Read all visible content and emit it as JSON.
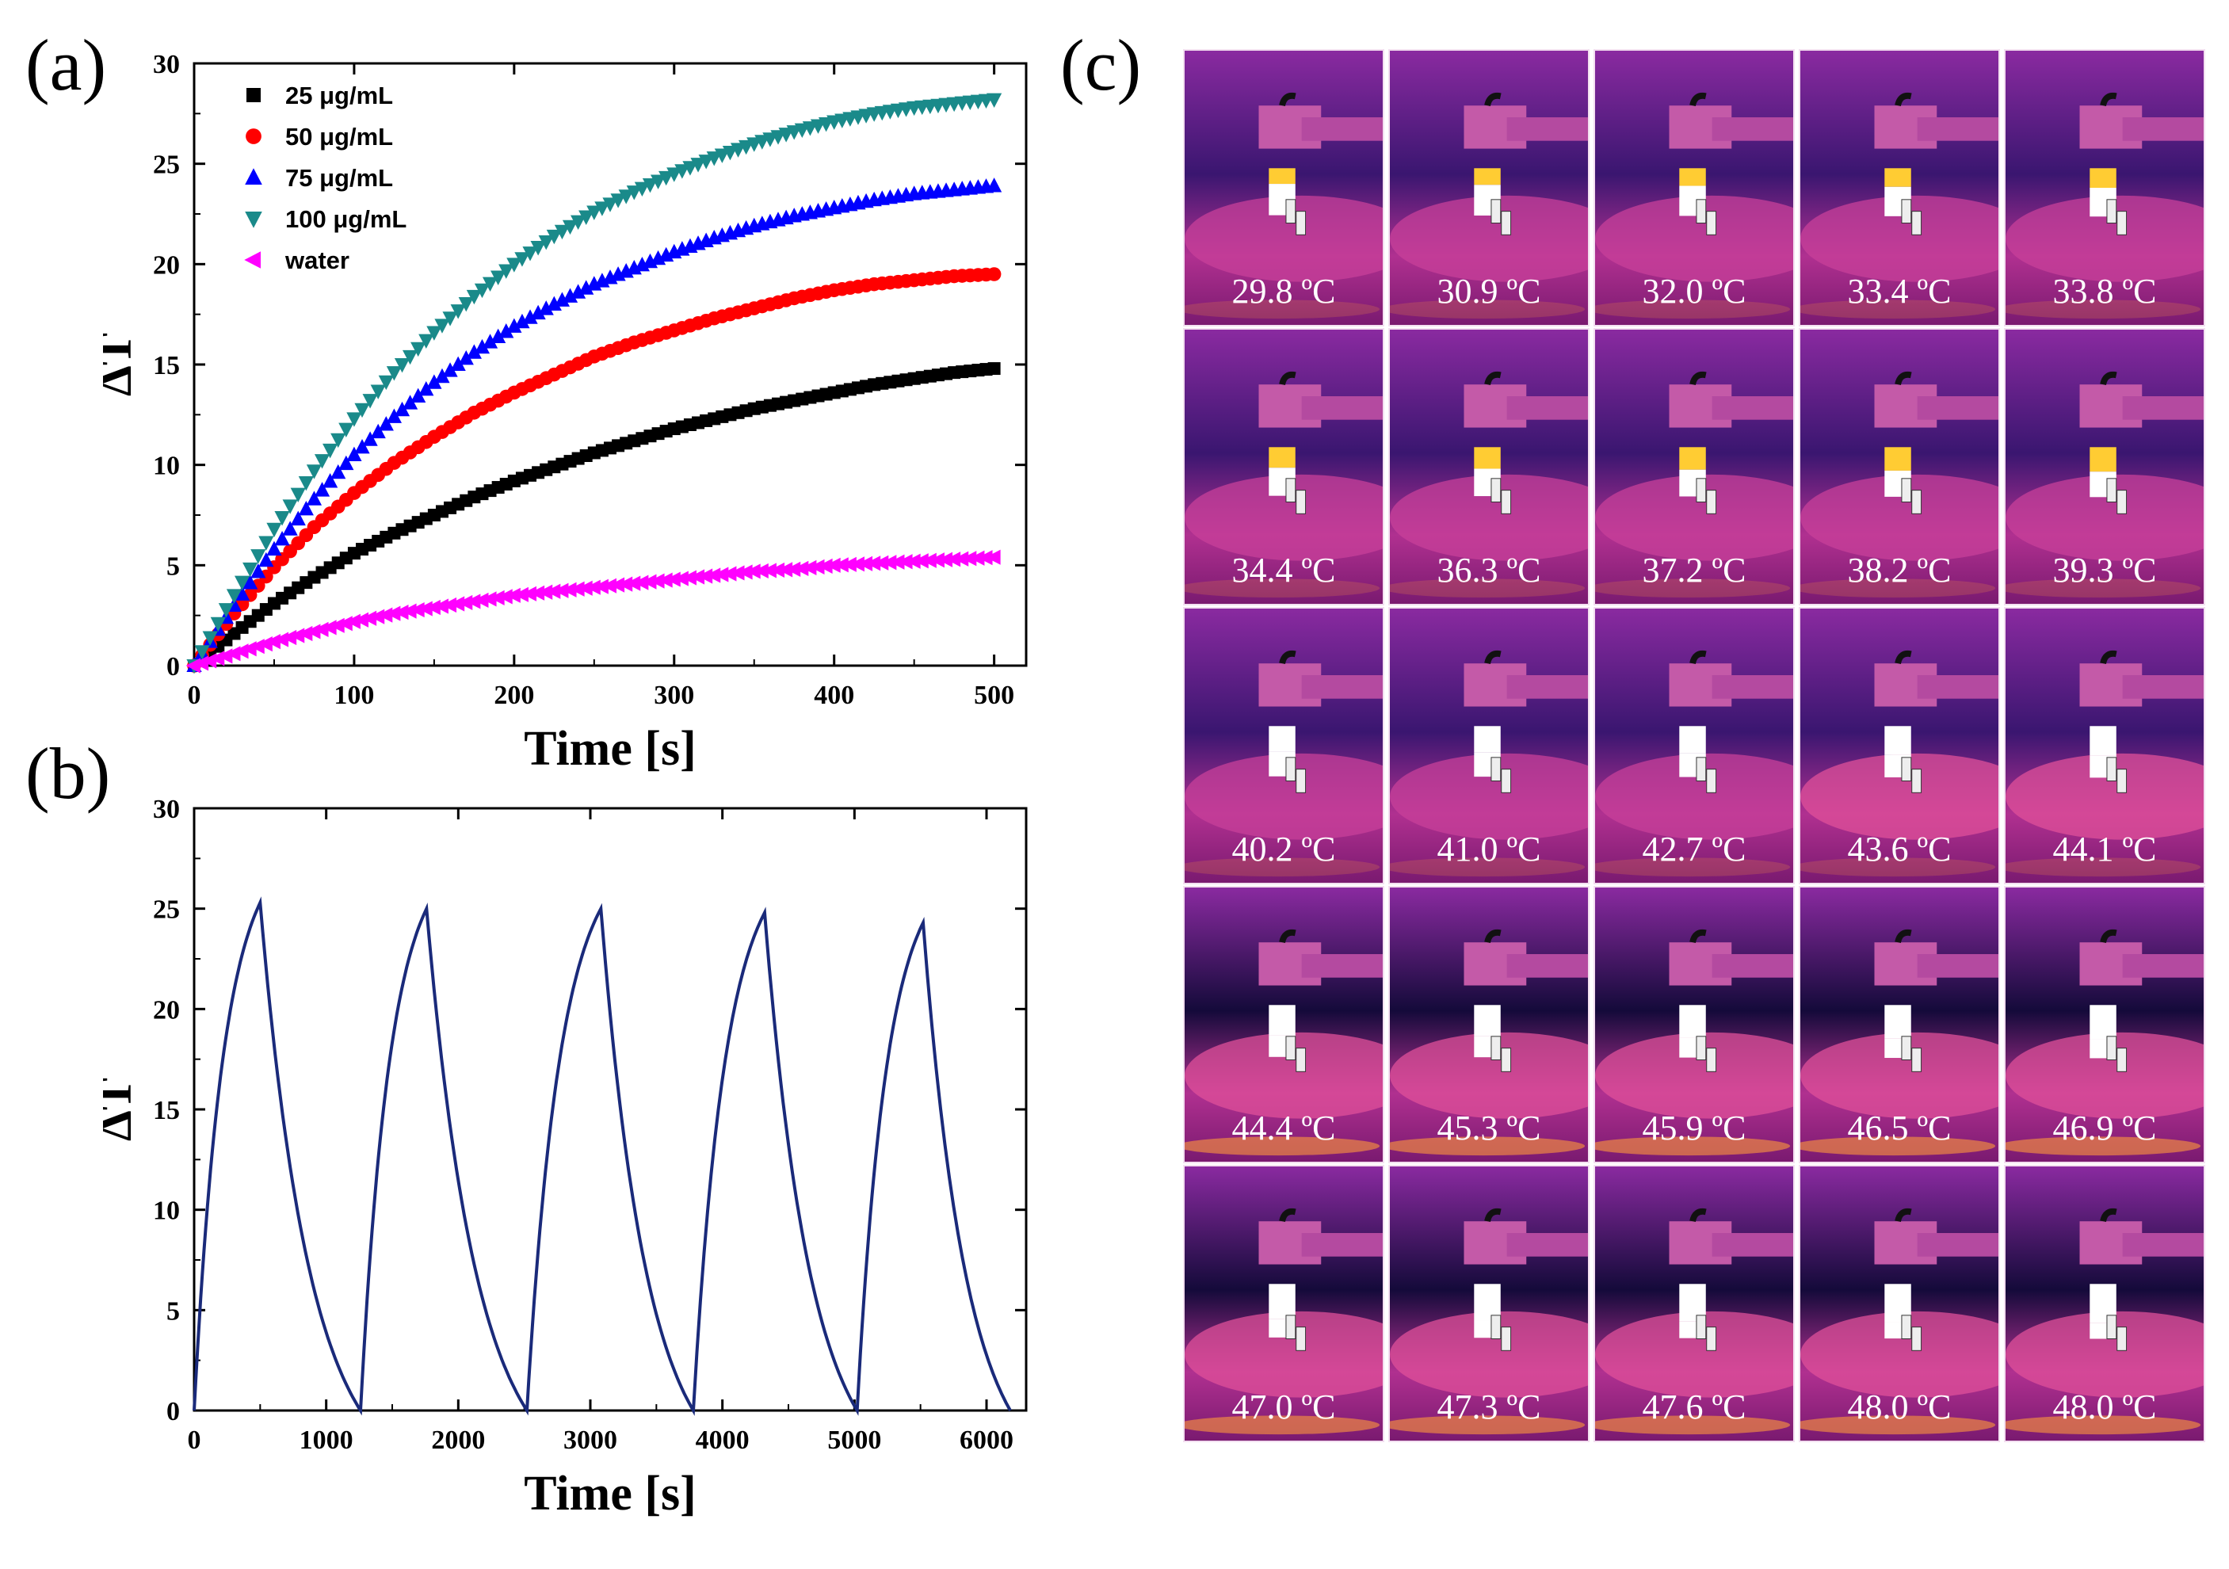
{
  "panel_labels": {
    "a": "(a)",
    "b": "(b)",
    "c": "(c)"
  },
  "chart_data": [
    {
      "id": "a",
      "type": "scatter",
      "xlabel": "Time [s]",
      "ylabel": "ΔT",
      "xlim": [
        0,
        520
      ],
      "ylim": [
        0,
        30
      ],
      "xticks": [
        0,
        100,
        200,
        300,
        400,
        500
      ],
      "yticks": [
        0,
        5,
        10,
        15,
        20,
        25,
        30
      ],
      "legend_position": "top-left",
      "series": [
        {
          "name": "25 μg/mL",
          "marker": "square",
          "color": "#000000",
          "x": [
            0,
            25,
            50,
            75,
            100,
            125,
            150,
            175,
            200,
            225,
            250,
            275,
            300,
            325,
            350,
            375,
            400,
            425,
            450,
            475,
            500
          ],
          "y": [
            0,
            1.6,
            3.1,
            4.4,
            5.6,
            6.6,
            7.5,
            8.4,
            9.2,
            9.9,
            10.6,
            11.2,
            11.8,
            12.3,
            12.8,
            13.2,
            13.6,
            14.0,
            14.3,
            14.6,
            14.8
          ]
        },
        {
          "name": "50 μg/mL",
          "marker": "circle",
          "color": "#ff0000",
          "x": [
            0,
            25,
            50,
            75,
            100,
            125,
            150,
            175,
            200,
            225,
            250,
            275,
            300,
            325,
            350,
            375,
            400,
            425,
            450,
            475,
            500
          ],
          "y": [
            0,
            2.6,
            4.9,
            6.9,
            8.6,
            10.1,
            11.4,
            12.6,
            13.6,
            14.5,
            15.4,
            16.1,
            16.7,
            17.3,
            17.8,
            18.3,
            18.7,
            19.0,
            19.2,
            19.4,
            19.5
          ]
        },
        {
          "name": "75 μg/mL",
          "marker": "triangle-up",
          "color": "#0000ff",
          "x": [
            0,
            25,
            50,
            75,
            100,
            125,
            150,
            175,
            200,
            225,
            250,
            275,
            300,
            325,
            350,
            375,
            400,
            425,
            450,
            475,
            500
          ],
          "y": [
            0,
            3.0,
            5.8,
            8.3,
            10.5,
            12.4,
            14.1,
            15.6,
            16.9,
            18.0,
            19.0,
            19.8,
            20.6,
            21.3,
            21.9,
            22.4,
            22.8,
            23.2,
            23.5,
            23.7,
            23.9
          ]
        },
        {
          "name": "100 μg/mL",
          "marker": "triangle-down",
          "color": "#1a8a8a",
          "x": [
            0,
            25,
            50,
            75,
            100,
            125,
            150,
            175,
            200,
            225,
            250,
            275,
            300,
            325,
            350,
            375,
            400,
            425,
            450,
            475,
            500
          ],
          "y": [
            0,
            3.5,
            6.8,
            9.7,
            12.3,
            14.6,
            16.6,
            18.4,
            20.0,
            21.4,
            22.6,
            23.6,
            24.5,
            25.3,
            26.0,
            26.6,
            27.1,
            27.5,
            27.8,
            28.0,
            28.2
          ]
        },
        {
          "name": "water",
          "marker": "triangle-left",
          "color": "#ff00ff",
          "x": [
            0,
            25,
            50,
            75,
            100,
            125,
            150,
            175,
            200,
            225,
            250,
            275,
            300,
            325,
            350,
            375,
            400,
            425,
            450,
            475,
            500
          ],
          "y": [
            0,
            0.6,
            1.2,
            1.7,
            2.2,
            2.6,
            2.9,
            3.2,
            3.5,
            3.7,
            3.9,
            4.1,
            4.3,
            4.5,
            4.7,
            4.8,
            5.0,
            5.1,
            5.2,
            5.3,
            5.4
          ]
        }
      ]
    },
    {
      "id": "b",
      "type": "line",
      "xlabel": "Time [s]",
      "ylabel": "ΔT",
      "xlim": [
        0,
        6300
      ],
      "ylim": [
        0,
        30
      ],
      "xticks": [
        0,
        1000,
        2000,
        3000,
        4000,
        5000,
        6000
      ],
      "yticks": [
        0,
        5,
        10,
        15,
        20,
        25,
        30
      ],
      "color": "#1a2a7a",
      "cycles": [
        {
          "start": 0,
          "peak_time": 500,
          "peak": 25.3,
          "end": 1260
        },
        {
          "start": 1260,
          "peak_time": 1760,
          "peak": 25.0,
          "end": 2520
        },
        {
          "start": 2520,
          "peak_time": 3080,
          "peak": 25.0,
          "end": 3780
        },
        {
          "start": 3780,
          "peak_time": 4320,
          "peak": 24.8,
          "end": 5020
        },
        {
          "start": 5020,
          "peak_time": 5520,
          "peak": 24.3,
          "end": 6180
        }
      ]
    }
  ],
  "thermal_images": {
    "temperatures": [
      "29.8 ºC",
      "30.9 ºC",
      "32.0 ºC",
      "33.4 ºC",
      "33.8 ºC",
      "34.4 ºC",
      "36.3 ºC",
      "37.2 ºC",
      "38.2 ºC",
      "39.3 ºC",
      "40.2 ºC",
      "41.0 ºC",
      "42.7 ºC",
      "43.6 ºC",
      "44.1 ºC",
      "44.4 ºC",
      "45.3 ºC",
      "45.9 ºC",
      "46.5 ºC",
      "46.9 ºC",
      "47.0 ºC",
      "47.3 ºC",
      "47.6 ºC",
      "48.0 ºC",
      "48.0 ºC"
    ]
  }
}
